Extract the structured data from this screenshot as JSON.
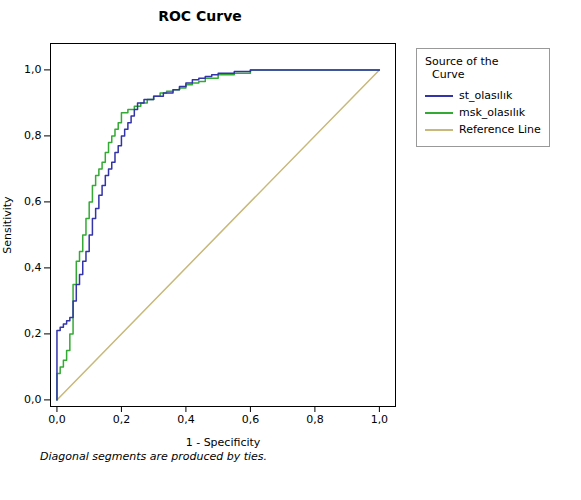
{
  "chart_data": {
    "type": "line",
    "title": "ROC  Curve",
    "x_label": "1 - Specificity",
    "y_label": "Sensitivity",
    "annotations": [
      "Diagonal segments are produced by ties."
    ],
    "legend_title": "Source of the\n  Curve",
    "legend": "right",
    "grid": false,
    "xlim": [
      -0.02,
      1.05
    ],
    "ylim": [
      -0.02,
      1.08
    ],
    "xticks": [
      {
        "value": 0.0,
        "label": "0,0"
      },
      {
        "value": 0.2,
        "label": "0,2"
      },
      {
        "value": 0.4,
        "label": "0,4"
      },
      {
        "value": 0.6,
        "label": "0,6"
      },
      {
        "value": 0.8,
        "label": "0,8"
      },
      {
        "value": 1.0,
        "label": "1,0"
      }
    ],
    "yticks": [
      {
        "value": 0.0,
        "label": "0,0"
      },
      {
        "value": 0.2,
        "label": "0,2"
      },
      {
        "value": 0.4,
        "label": "0,4"
      },
      {
        "value": 0.6,
        "label": "0,6"
      },
      {
        "value": 0.8,
        "label": "0,8"
      },
      {
        "value": 1.0,
        "label": "1,0"
      }
    ],
    "series": [
      {
        "name": "st_olasılık",
        "color": "#3333aa",
        "x": [
          0.0,
          0.0,
          0.01,
          0.01,
          0.02,
          0.02,
          0.03,
          0.03,
          0.04,
          0.04,
          0.05,
          0.05,
          0.06,
          0.06,
          0.07,
          0.07,
          0.08,
          0.08,
          0.09,
          0.09,
          0.1,
          0.1,
          0.11,
          0.11,
          0.12,
          0.12,
          0.13,
          0.13,
          0.14,
          0.14,
          0.15,
          0.15,
          0.16,
          0.16,
          0.17,
          0.17,
          0.18,
          0.18,
          0.19,
          0.19,
          0.2,
          0.2,
          0.21,
          0.21,
          0.22,
          0.22,
          0.23,
          0.23,
          0.24,
          0.24,
          0.25,
          0.25,
          0.27,
          0.27,
          0.3,
          0.3,
          0.33,
          0.33,
          0.36,
          0.36,
          0.38,
          0.38,
          0.4,
          0.4,
          0.42,
          0.42,
          0.44,
          0.44,
          0.46,
          0.46,
          0.48,
          0.48,
          0.5,
          0.5,
          0.55,
          0.55,
          0.6,
          0.6,
          0.65,
          0.65,
          0.7,
          0.7,
          0.8,
          0.8,
          0.9,
          0.9,
          1.0,
          1.0
        ],
        "values": [
          0.0,
          0.21,
          0.21,
          0.22,
          0.22,
          0.23,
          0.23,
          0.24,
          0.24,
          0.25,
          0.25,
          0.3,
          0.3,
          0.35,
          0.35,
          0.38,
          0.38,
          0.42,
          0.42,
          0.45,
          0.45,
          0.5,
          0.5,
          0.55,
          0.55,
          0.58,
          0.58,
          0.62,
          0.62,
          0.65,
          0.65,
          0.68,
          0.68,
          0.7,
          0.7,
          0.72,
          0.72,
          0.75,
          0.75,
          0.77,
          0.77,
          0.8,
          0.8,
          0.82,
          0.82,
          0.84,
          0.84,
          0.86,
          0.86,
          0.88,
          0.88,
          0.9,
          0.9,
          0.91,
          0.91,
          0.92,
          0.92,
          0.93,
          0.93,
          0.94,
          0.94,
          0.95,
          0.95,
          0.96,
          0.96,
          0.97,
          0.97,
          0.975,
          0.975,
          0.98,
          0.98,
          0.985,
          0.985,
          0.99,
          0.99,
          0.995,
          0.995,
          1.0,
          1.0,
          1.0,
          1.0,
          1.0,
          1.0,
          1.0,
          1.0,
          1.0,
          1.0,
          1.0
        ]
      },
      {
        "name": "msk_olasılık",
        "color": "#33aa33",
        "x": [
          0.0,
          0.0,
          0.01,
          0.01,
          0.02,
          0.02,
          0.03,
          0.03,
          0.04,
          0.04,
          0.05,
          0.05,
          0.06,
          0.06,
          0.07,
          0.07,
          0.08,
          0.08,
          0.09,
          0.09,
          0.1,
          0.1,
          0.11,
          0.11,
          0.12,
          0.12,
          0.13,
          0.13,
          0.14,
          0.14,
          0.15,
          0.15,
          0.16,
          0.16,
          0.17,
          0.17,
          0.18,
          0.18,
          0.19,
          0.19,
          0.2,
          0.2,
          0.22,
          0.22,
          0.24,
          0.24,
          0.26,
          0.26,
          0.28,
          0.28,
          0.3,
          0.3,
          0.32,
          0.32,
          0.34,
          0.34,
          0.36,
          0.36,
          0.38,
          0.38,
          0.4,
          0.4,
          0.42,
          0.42,
          0.44,
          0.44,
          0.46,
          0.46,
          0.5,
          0.5,
          0.55,
          0.55,
          0.6,
          0.6,
          0.7,
          0.7,
          0.8,
          0.8,
          0.9,
          0.9,
          1.0,
          1.0
        ],
        "values": [
          0.0,
          0.08,
          0.08,
          0.1,
          0.1,
          0.12,
          0.12,
          0.15,
          0.15,
          0.2,
          0.2,
          0.35,
          0.35,
          0.42,
          0.42,
          0.45,
          0.45,
          0.5,
          0.5,
          0.55,
          0.55,
          0.6,
          0.6,
          0.65,
          0.65,
          0.68,
          0.68,
          0.7,
          0.7,
          0.72,
          0.72,
          0.75,
          0.75,
          0.78,
          0.78,
          0.8,
          0.8,
          0.82,
          0.82,
          0.84,
          0.84,
          0.87,
          0.87,
          0.88,
          0.88,
          0.89,
          0.89,
          0.9,
          0.9,
          0.91,
          0.91,
          0.92,
          0.92,
          0.93,
          0.93,
          0.935,
          0.935,
          0.94,
          0.94,
          0.945,
          0.945,
          0.955,
          0.955,
          0.96,
          0.96,
          0.965,
          0.965,
          0.975,
          0.975,
          0.985,
          0.985,
          0.99,
          0.99,
          1.0,
          1.0,
          1.0,
          1.0,
          1.0,
          1.0,
          1.0,
          1.0,
          1.0
        ]
      },
      {
        "name": "Reference Line",
        "color": "#c8b87a",
        "x": [
          0,
          1
        ],
        "values": [
          0,
          1
        ]
      }
    ]
  }
}
